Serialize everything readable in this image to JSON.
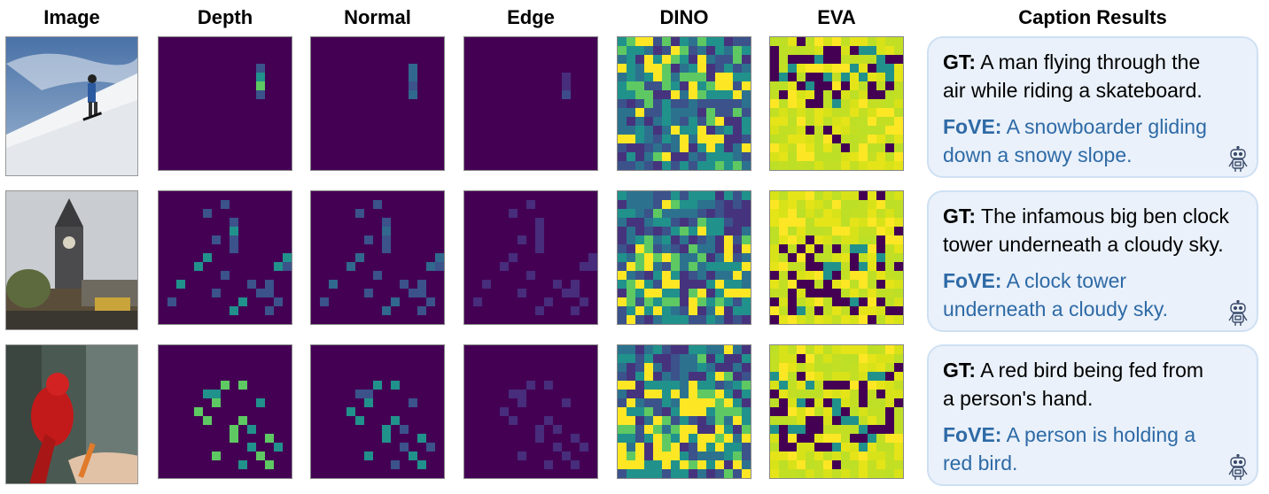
{
  "headers": {
    "image": "Image",
    "depth": "Depth",
    "normal": "Normal",
    "edge": "Edge",
    "dino": "DINO",
    "eva": "EVA",
    "caption": "Caption Results"
  },
  "colors": {
    "viridis_dark": "#440154",
    "viridis_blue": "#3b528b",
    "viridis_teal": "#21918c",
    "viridis_green": "#5ec962",
    "viridis_yellow": "#fde725",
    "caption_bg": "#eaf1fa",
    "caption_border": "#cfe0f3",
    "fove_text": "#2e6aa6"
  },
  "rows": [
    {
      "gt_label": "GT:",
      "gt_line1": "A man flying through the",
      "gt_line2": "air while riding a skateboard.",
      "fove_label": "FoVE:",
      "fove_line1": "A snowboarder gliding",
      "fove_line2": "down a snowy slope."
    },
    {
      "gt_label": "GT:",
      "gt_line1": "The infamous big ben clock",
      "gt_line2": "tower underneath a cloudy sky.",
      "fove_label": "FoVE:",
      "fove_line1": "A clock tower",
      "fove_line2": "underneath a cloudy sky."
    },
    {
      "gt_label": "GT:",
      "gt_line1": "A red bird being fed from",
      "gt_line2": "a person's hand.",
      "fove_label": "FoVE:",
      "fove_line1": "A person is holding a",
      "fove_line2": "red bird."
    }
  ]
}
